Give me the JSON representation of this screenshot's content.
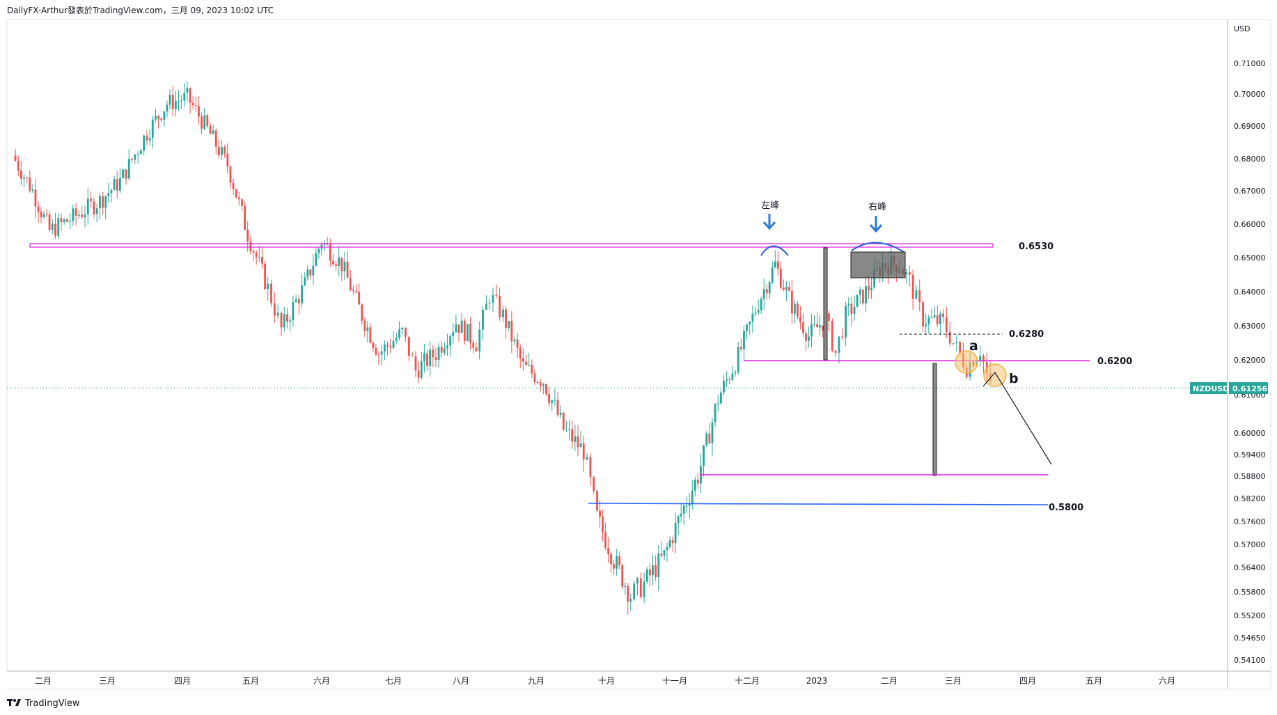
{
  "header": {
    "source": "DailyFX-Arthur發表於TradingView.com，三月 09, 2023 10:02 UTC"
  },
  "footer": {
    "brand": "TradingView",
    "logo": "tradingview-logo-icon"
  },
  "chart_data": {
    "type": "candlestick",
    "symbol": "NZDUSD",
    "last_price": "0.61256",
    "currency": "USD",
    "y_axis_ticks": [
      "0.71000",
      "0.70000",
      "0.69000",
      "0.68000",
      "0.67000",
      "0.66000",
      "0.65000",
      "0.64000",
      "0.63000",
      "0.62000",
      "0.61000",
      "0.60000",
      "0.59400",
      "0.58800",
      "0.58200",
      "0.57600",
      "0.57000",
      "0.56400",
      "0.55800",
      "0.55200",
      "0.54650",
      "0.54100"
    ],
    "x_axis_ticks": [
      "二月",
      "三月",
      "四月",
      "五月",
      "六月",
      "七月",
      "八月",
      "九月",
      "十月",
      "十一月",
      "十二月",
      "2023",
      "二月",
      "三月",
      "四月",
      "五月",
      "六月"
    ],
    "ylim": [
      0.538,
      0.718
    ],
    "price_path": [
      {
        "month": 0.0,
        "close": 0.681
      },
      {
        "month": 0.3,
        "close": 0.67
      },
      {
        "month": 0.55,
        "close": 0.658
      },
      {
        "month": 0.9,
        "close": 0.662
      },
      {
        "month": 1.3,
        "close": 0.667
      },
      {
        "month": 1.6,
        "close": 0.673
      },
      {
        "month": 2.0,
        "close": 0.688
      },
      {
        "month": 2.3,
        "close": 0.697
      },
      {
        "month": 2.6,
        "close": 0.699
      },
      {
        "month": 2.9,
        "close": 0.689
      },
      {
        "month": 3.2,
        "close": 0.678
      },
      {
        "month": 3.5,
        "close": 0.657
      },
      {
        "month": 3.8,
        "close": 0.641
      },
      {
        "month": 4.0,
        "close": 0.629
      },
      {
        "month": 4.35,
        "close": 0.642
      },
      {
        "month": 4.6,
        "close": 0.655
      },
      {
        "month": 4.9,
        "close": 0.648
      },
      {
        "month": 5.2,
        "close": 0.633
      },
      {
        "month": 5.45,
        "close": 0.622
      },
      {
        "month": 5.8,
        "close": 0.628
      },
      {
        "month": 6.0,
        "close": 0.617
      },
      {
        "month": 6.3,
        "close": 0.622
      },
      {
        "month": 6.6,
        "close": 0.631
      },
      {
        "month": 6.9,
        "close": 0.625
      },
      {
        "month": 7.1,
        "close": 0.639
      },
      {
        "month": 7.3,
        "close": 0.633
      },
      {
        "month": 7.6,
        "close": 0.618
      },
      {
        "month": 7.9,
        "close": 0.614
      },
      {
        "month": 8.2,
        "close": 0.601
      },
      {
        "month": 8.5,
        "close": 0.595
      },
      {
        "month": 8.7,
        "close": 0.577
      },
      {
        "month": 8.95,
        "close": 0.566
      },
      {
        "month": 9.2,
        "close": 0.557
      },
      {
        "month": 9.4,
        "close": 0.56
      },
      {
        "month": 9.7,
        "close": 0.567
      },
      {
        "month": 9.95,
        "close": 0.578
      },
      {
        "month": 10.2,
        "close": 0.588
      },
      {
        "month": 10.5,
        "close": 0.609
      },
      {
        "month": 10.8,
        "close": 0.621
      },
      {
        "month": 11.1,
        "close": 0.637
      },
      {
        "month": 11.35,
        "close": 0.648
      },
      {
        "month": 11.6,
        "close": 0.636
      },
      {
        "month": 11.85,
        "close": 0.627
      },
      {
        "month": 12.1,
        "close": 0.632
      },
      {
        "month": 12.25,
        "close": 0.622
      },
      {
        "month": 12.4,
        "close": 0.633
      },
      {
        "month": 12.7,
        "close": 0.64
      },
      {
        "month": 12.95,
        "close": 0.648
      },
      {
        "month": 13.2,
        "close": 0.648
      },
      {
        "month": 13.35,
        "close": 0.643
      },
      {
        "month": 13.55,
        "close": 0.632
      },
      {
        "month": 13.85,
        "close": 0.631
      },
      {
        "month": 14.0,
        "close": 0.625
      },
      {
        "month": 14.2,
        "close": 0.618
      },
      {
        "month": 14.4,
        "close": 0.623
      },
      {
        "month": 14.55,
        "close": 0.612
      }
    ],
    "annotations": {
      "left_peak_label": "左峰",
      "right_peak_label": "右峰",
      "level_6530": "0.6530",
      "level_6280": "0.6280",
      "level_6200": "0.6200",
      "level_5800": "0.5800",
      "wave_a": "a",
      "wave_b": "b"
    },
    "colors": {
      "up": "#26a69a",
      "down": "#ef5350",
      "magenta": "#e020e0",
      "blue": "#2962ff",
      "peak_arc": "#2a5bd7",
      "circle": "#f5b041",
      "price_line": "#26a69a",
      "grid": "#f0f3fa"
    }
  }
}
